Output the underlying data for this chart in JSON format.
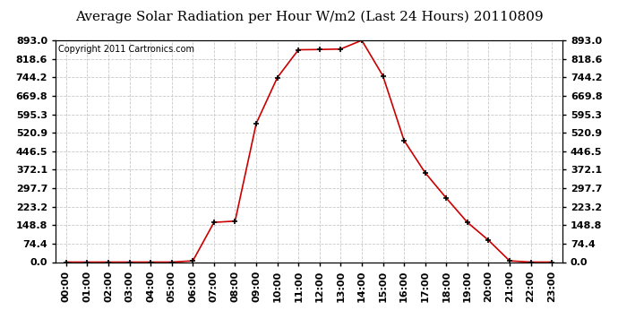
{
  "title": "Average Solar Radiation per Hour W/m2 (Last 24 Hours) 20110809",
  "copyright": "Copyright 2011 Cartronics.com",
  "hours": [
    "00:00",
    "01:00",
    "02:00",
    "03:00",
    "04:00",
    "05:00",
    "06:00",
    "07:00",
    "08:00",
    "09:00",
    "10:00",
    "11:00",
    "12:00",
    "13:00",
    "14:00",
    "15:00",
    "16:00",
    "17:00",
    "18:00",
    "19:00",
    "20:00",
    "21:00",
    "22:00",
    "23:00"
  ],
  "values": [
    0,
    0,
    0,
    0,
    0,
    0,
    5,
    160,
    165,
    558,
    743,
    855,
    856,
    858,
    893,
    750,
    490,
    360,
    258,
    160,
    88,
    5,
    0,
    0
  ],
  "line_color": "#cc0000",
  "marker_color": "#000000",
  "background_color": "#ffffff",
  "grid_color": "#bbbbbb",
  "yticks": [
    0.0,
    74.4,
    148.8,
    223.2,
    297.7,
    372.1,
    446.5,
    520.9,
    595.3,
    669.8,
    744.2,
    818.6,
    893.0
  ],
  "ylim": [
    0,
    893.0
  ],
  "title_fontsize": 11,
  "copyright_fontsize": 7,
  "tick_fontsize": 8,
  "left_yticks_visible": true,
  "right_yticks_visible": true
}
